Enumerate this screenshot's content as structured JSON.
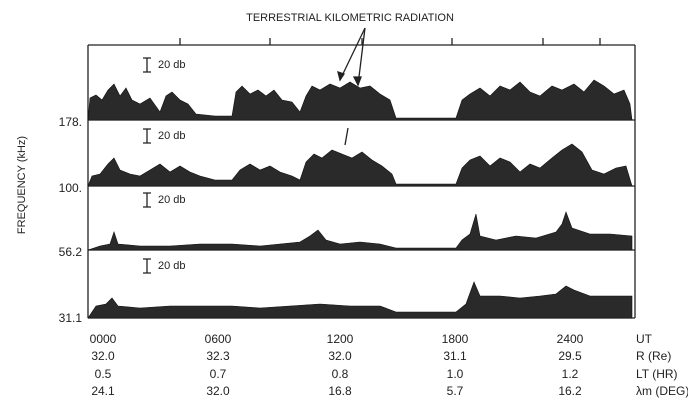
{
  "figure": {
    "title": "TERRESTRIAL KILOMETRIC RADIATION",
    "y_axis_label": "FREQUENCY (kHz)",
    "panels": [
      {
        "frequency": "178.",
        "scale": "20 db"
      },
      {
        "frequency": "100.",
        "scale": "20 db"
      },
      {
        "frequency": "56.2",
        "scale": "20 db"
      },
      {
        "frequency": "31.1",
        "scale": "20 db"
      }
    ],
    "rows": [
      {
        "label": "UT",
        "values": [
          "0000",
          "0600",
          "1200",
          "1800",
          "2400"
        ]
      },
      {
        "label": "R (Re)",
        "values": [
          "32.0",
          "32.3",
          "32.0",
          "31.1",
          "29.5"
        ]
      },
      {
        "label": "LT (HR)",
        "values": [
          "0.5",
          "0.7",
          "0.8",
          "1.0",
          "1.2"
        ]
      },
      {
        "label": "λm (DEG)",
        "values": [
          "24.1",
          "32.0",
          "16.8",
          "5.7",
          "16.2"
        ]
      }
    ]
  }
}
